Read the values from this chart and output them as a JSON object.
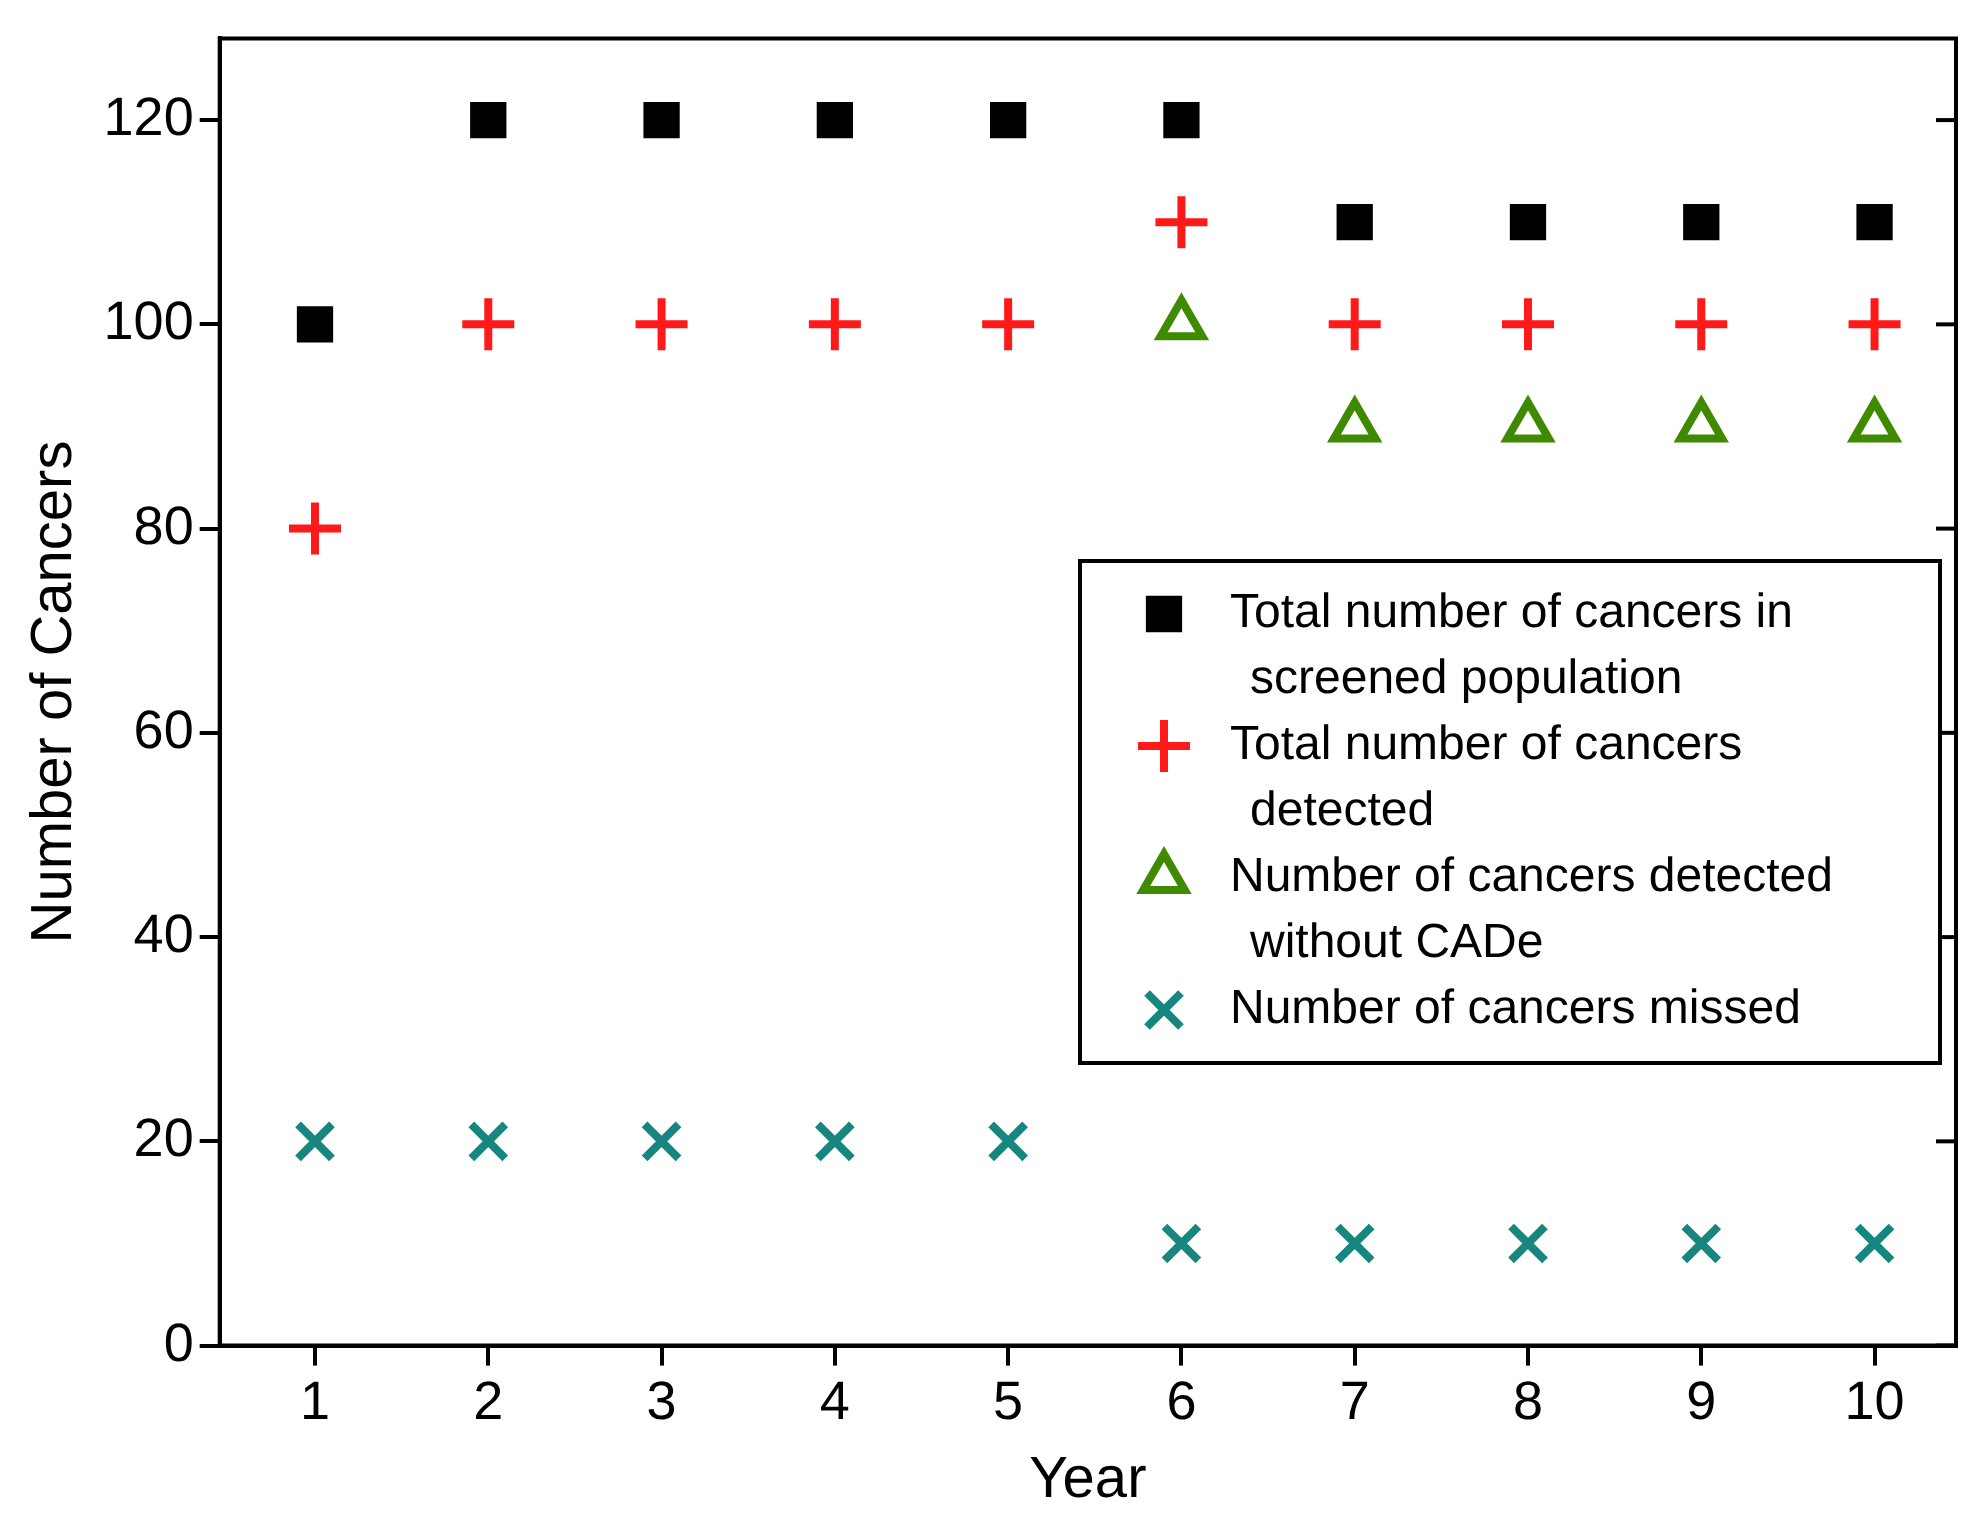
{
  "chart_data": {
    "type": "scatter",
    "xlabel": "Year",
    "ylabel": "Number of Cancers",
    "x": [
      1,
      2,
      3,
      4,
      5,
      6,
      7,
      8,
      9,
      10
    ],
    "xlim": [
      0.45,
      10.47
    ],
    "xticks": [
      1,
      2,
      3,
      4,
      5,
      6,
      7,
      8,
      9,
      10
    ],
    "ylim": [
      0,
      128
    ],
    "yticks": [
      0,
      20,
      40,
      60,
      80,
      100,
      120
    ],
    "grid": false,
    "legend": "right",
    "series": [
      {
        "name": "Total number of cancers in screened population",
        "color": "#000000",
        "marker": "square",
        "values": [
          100,
          120,
          120,
          120,
          120,
          120,
          110,
          110,
          110,
          110
        ]
      },
      {
        "name": "Total number of cancers detected",
        "color": "#ff1a1a",
        "marker": "cross",
        "values": [
          80,
          100,
          100,
          100,
          100,
          110,
          100,
          100,
          100,
          100
        ]
      },
      {
        "name": "Number of cancers detected without CADe",
        "color": "#3f8a00",
        "marker": "triangle",
        "values": [
          null,
          null,
          null,
          null,
          null,
          100,
          90,
          90,
          90,
          90
        ]
      },
      {
        "name": "Number of cancers missed",
        "color": "#16867f",
        "marker": "x",
        "values": [
          20,
          20,
          20,
          20,
          20,
          10,
          10,
          10,
          10,
          10
        ]
      }
    ]
  }
}
